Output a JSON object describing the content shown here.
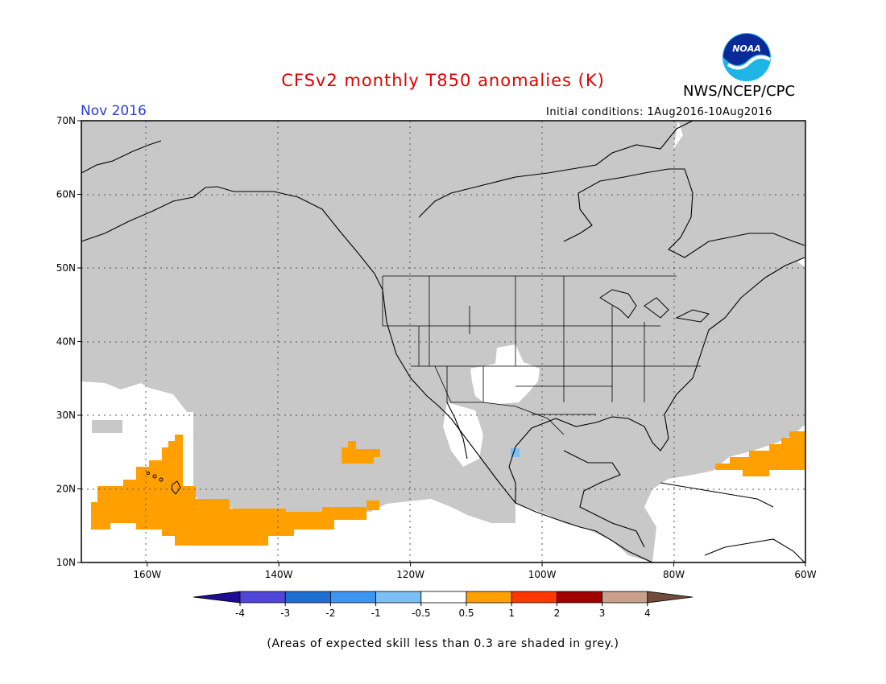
{
  "header": {
    "title": "CFSv2 monthly T850 anomalies (K)",
    "agency": "NWS/NCEP/CPC",
    "logo_text": "NOAA",
    "month": "Nov 2016",
    "initial_conditions": "Initial conditions: 1Aug2016-10Aug2016"
  },
  "map": {
    "lon_range": [
      -170,
      -60
    ],
    "lat_range": [
      10,
      70
    ],
    "lon_ticks": [
      "160W",
      "140W",
      "120W",
      "100W",
      "80W",
      "60W"
    ],
    "lat_ticks": [
      "70N",
      "60N",
      "50N",
      "40N",
      "30N",
      "20N",
      "10N"
    ],
    "colors": {
      "land_grey": "#c8c8c8",
      "positive_anomaly": "#ffa000",
      "weak_negative": "#7cbff5",
      "coast": "#000000"
    }
  },
  "colorbar": {
    "labels": [
      "-4",
      "-3",
      "-2",
      "-1",
      "-0.5",
      "0.5",
      "1",
      "2",
      "3",
      "4"
    ],
    "colors": [
      "#1e0c96",
      "#5046d7",
      "#1e6ed2",
      "#3c96f0",
      "#7cbff5",
      "#ffffff",
      "#ffa000",
      "#ff3700",
      "#a00000",
      "#c8a08c",
      "#734b3c"
    ]
  },
  "footer": {
    "note": "(Areas of expected skill less than 0.3 are shaded in grey.)"
  }
}
